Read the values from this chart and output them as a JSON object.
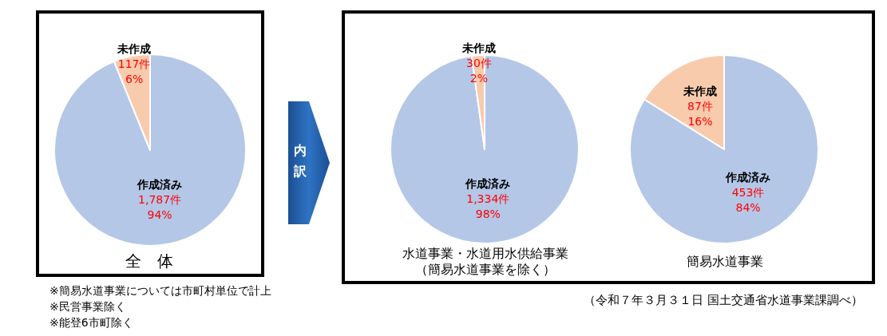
{
  "chart_data": [
    {
      "type": "pie",
      "title": "全　体",
      "categories": [
        "作成済み",
        "未作成"
      ],
      "values": [
        1787,
        117
      ],
      "colors": [
        "#b4c7e7",
        "#f8cbad"
      ],
      "value_labels": [
        "1,787件\n94%",
        "117件\n6%"
      ],
      "annotations": [
        "※簡易水道事業については市町村単位で計上",
        "※民営事業除く",
        "※能登6市町除く"
      ]
    },
    {
      "type": "pie",
      "title": "水道事業・水道用水供給事業（簡易水道事業を除く）",
      "categories": [
        "作成済み",
        "未作成"
      ],
      "values": [
        1334,
        30
      ],
      "colors": [
        "#b4c7e7",
        "#f8cbad"
      ],
      "value_labels": [
        "1,334件\n98%",
        "30件\n2%"
      ],
      "annotations": [
        "内訳"
      ]
    },
    {
      "type": "pie",
      "title": "簡易水道事業",
      "categories": [
        "作成済み",
        "未作成"
      ],
      "values": [
        453,
        87
      ],
      "colors": [
        "#b4c7e7",
        "#f8cbad"
      ],
      "value_labels": [
        "453件\n84%",
        "87件\n16%"
      ],
      "annotations": [
        "（令和７年３月３１日 国土交通省水道事業課調べ）"
      ]
    }
  ]
}
